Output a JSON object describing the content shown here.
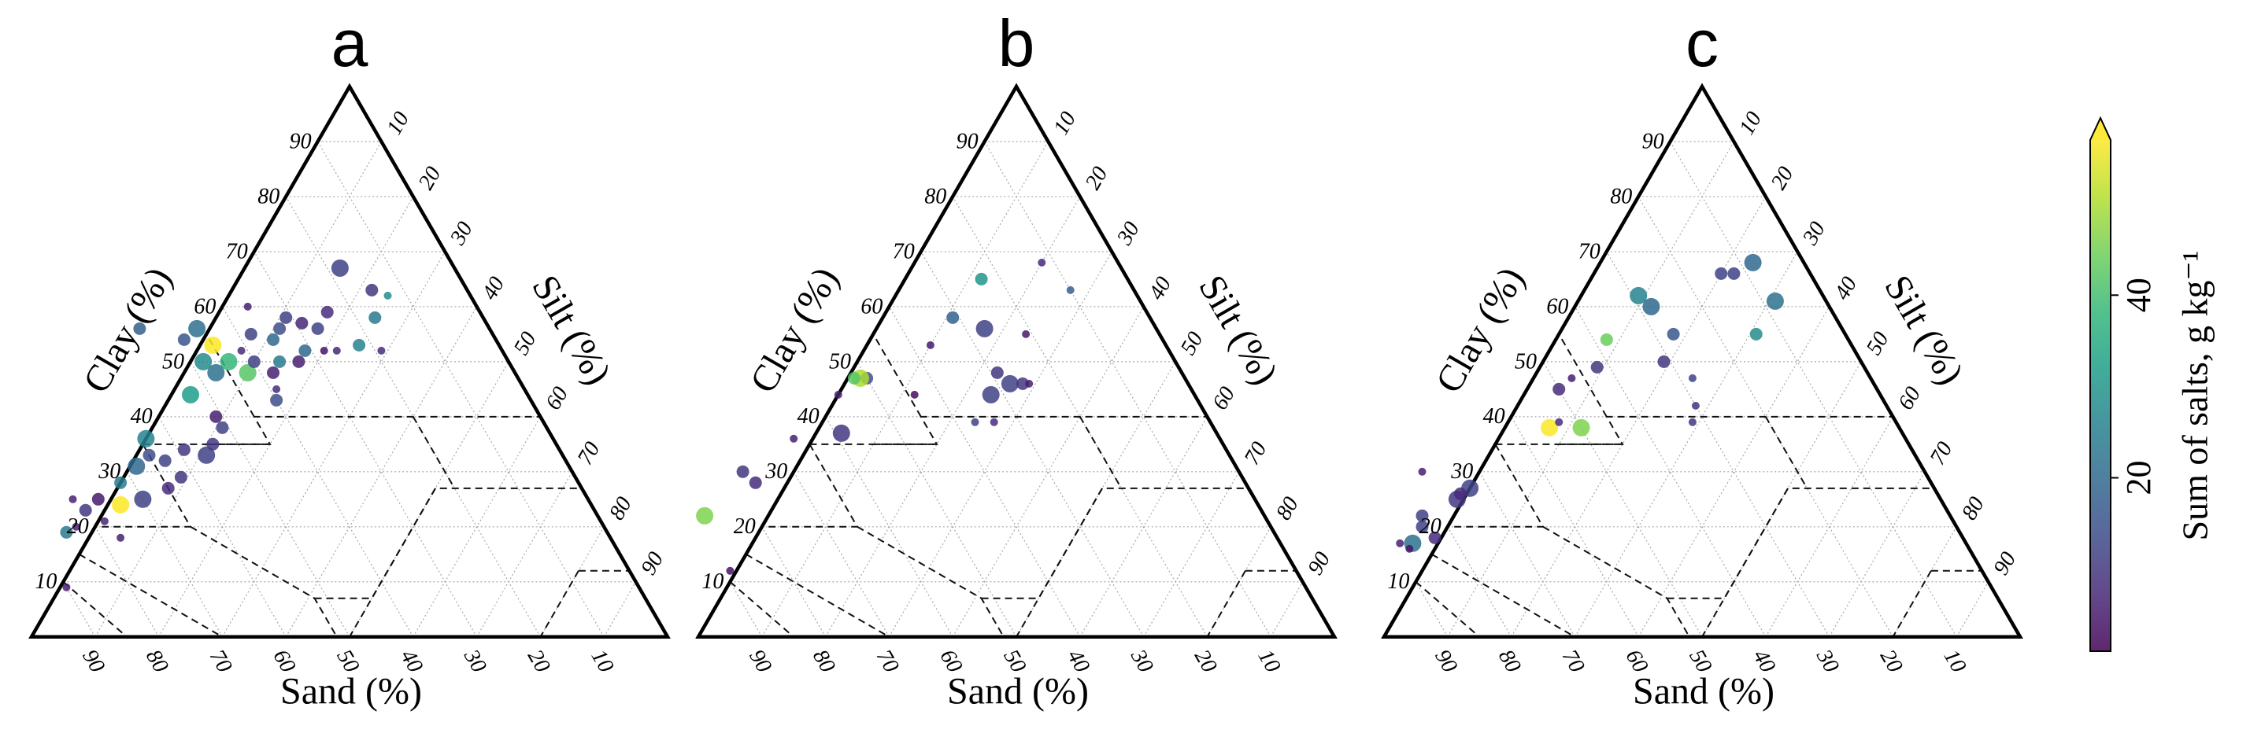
{
  "chart_data": {
    "type": "scatter",
    "subtype": "ternary",
    "axes": {
      "left_label": "Clay (%)",
      "right_label": "Silt (%)",
      "bottom_label": "Sand (%)",
      "clay_ticks": [
        "10",
        "20",
        "30",
        "40",
        "50",
        "60",
        "70",
        "80",
        "90"
      ],
      "silt_ticks": [
        "10",
        "20",
        "30",
        "40",
        "50",
        "60",
        "70",
        "80",
        "90"
      ],
      "sand_ticks": [
        "90",
        "80",
        "70",
        "60",
        "50",
        "40",
        "30",
        "20",
        "10"
      ]
    },
    "colorbar": {
      "label": "Sum of salts, g kg⁻¹",
      "range": [
        1,
        57
      ],
      "ticks": [
        "20",
        "40"
      ],
      "tick_values": [
        20,
        40
      ],
      "extend": "max",
      "colormap": "viridis"
    },
    "panels": [
      {
        "label": "a",
        "points": [
          {
            "sand": 18,
            "clay": 67,
            "salts": 12,
            "size": 3
          },
          {
            "sand": 15,
            "clay": 63,
            "salts": 10,
            "size": 2
          },
          {
            "sand": 13,
            "clay": 62,
            "salts": 28,
            "size": 1
          },
          {
            "sand": 17,
            "clay": 58,
            "salts": 24,
            "size": 2
          },
          {
            "sand": 24,
            "clay": 59,
            "salts": 8,
            "size": 2
          },
          {
            "sand": 27,
            "clay": 56,
            "salts": 12,
            "size": 2
          },
          {
            "sand": 29,
            "clay": 57,
            "salts": 7,
            "size": 2
          },
          {
            "sand": 31,
            "clay": 58,
            "salts": 12,
            "size": 2
          },
          {
            "sand": 33,
            "clay": 56,
            "salts": 14,
            "size": 2
          },
          {
            "sand": 35,
            "clay": 54,
            "salts": 20,
            "size": 2
          },
          {
            "sand": 36,
            "clay": 60,
            "salts": 6,
            "size": 1
          },
          {
            "sand": 38,
            "clay": 55,
            "salts": 12,
            "size": 2
          },
          {
            "sand": 41,
            "clay": 52,
            "salts": 8,
            "size": 1
          },
          {
            "sand": 46,
            "clay": 56,
            "salts": 22,
            "size": 3
          },
          {
            "sand": 45,
            "clay": 53,
            "salts": 57,
            "size": 3
          },
          {
            "sand": 44,
            "clay": 50,
            "salts": 38,
            "size": 3
          },
          {
            "sand": 42,
            "clay": 48,
            "salts": 42,
            "size": 3
          },
          {
            "sand": 40,
            "clay": 50,
            "salts": 12,
            "size": 2
          },
          {
            "sand": 38,
            "clay": 48,
            "salts": 6,
            "size": 2
          },
          {
            "sand": 36,
            "clay": 50,
            "salts": 24,
            "size": 2
          },
          {
            "sand": 33,
            "clay": 50,
            "salts": 6,
            "size": 2
          },
          {
            "sand": 31,
            "clay": 52,
            "salts": 20,
            "size": 2
          },
          {
            "sand": 28,
            "clay": 52,
            "salts": 4,
            "size": 1
          },
          {
            "sand": 26,
            "clay": 52,
            "salts": 7,
            "size": 1
          },
          {
            "sand": 22,
            "clay": 53,
            "salts": 26,
            "size": 2
          },
          {
            "sand": 19,
            "clay": 52,
            "salts": 8,
            "size": 1
          },
          {
            "sand": 48,
            "clay": 50,
            "salts": 28,
            "size": 3
          },
          {
            "sand": 47,
            "clay": 48,
            "salts": 22,
            "size": 3
          },
          {
            "sand": 49,
            "clay": 54,
            "salts": 16,
            "size": 2
          },
          {
            "sand": 55,
            "clay": 56,
            "salts": 18,
            "size": 2
          },
          {
            "sand": 53,
            "clay": 44,
            "salts": 32,
            "size": 3
          },
          {
            "sand": 51,
            "clay": 40,
            "salts": 6,
            "size": 2
          },
          {
            "sand": 51,
            "clay": 38,
            "salts": 12,
            "size": 2
          },
          {
            "sand": 40,
            "clay": 43,
            "salts": 14,
            "size": 2
          },
          {
            "sand": 39,
            "clay": 45,
            "salts": 8,
            "size": 1
          },
          {
            "sand": 64,
            "clay": 36,
            "salts": 26,
            "size": 3
          },
          {
            "sand": 65,
            "clay": 33,
            "salts": 14,
            "size": 2
          },
          {
            "sand": 63,
            "clay": 32,
            "salts": 12,
            "size": 2
          },
          {
            "sand": 59,
            "clay": 34,
            "salts": 10,
            "size": 2
          },
          {
            "sand": 56,
            "clay": 33,
            "salts": 12,
            "size": 3
          },
          {
            "sand": 54,
            "clay": 35,
            "salts": 10,
            "size": 2
          },
          {
            "sand": 68,
            "clay": 31,
            "salts": 20,
            "size": 3
          },
          {
            "sand": 62,
            "clay": 29,
            "salts": 10,
            "size": 2
          },
          {
            "sand": 65,
            "clay": 27,
            "salts": 8,
            "size": 2
          },
          {
            "sand": 72,
            "clay": 28,
            "salts": 24,
            "size": 2
          },
          {
            "sand": 70,
            "clay": 25,
            "salts": 12,
            "size": 3
          },
          {
            "sand": 74,
            "clay": 24,
            "salts": 57,
            "size": 3
          },
          {
            "sand": 77,
            "clay": 25,
            "salts": 5,
            "size": 2
          },
          {
            "sand": 80,
            "clay": 23,
            "salts": 10,
            "size": 2
          },
          {
            "sand": 81,
            "clay": 25,
            "salts": 6,
            "size": 1
          },
          {
            "sand": 78,
            "clay": 21,
            "salts": 7,
            "size": 1
          },
          {
            "sand": 83,
            "clay": 20,
            "salts": 6,
            "size": 1
          },
          {
            "sand": 85,
            "clay": 19,
            "salts": 24,
            "size": 2
          },
          {
            "sand": 77,
            "clay": 18,
            "salts": 6,
            "size": 1
          },
          {
            "sand": 90,
            "clay": 9,
            "salts": 6,
            "size": 1
          }
        ]
      },
      {
        "label": "b",
        "points": [
          {
            "sand": 12,
            "clay": 68,
            "salts": 8,
            "size": 1
          },
          {
            "sand": 10,
            "clay": 63,
            "salts": 18,
            "size": 1
          },
          {
            "sand": 23,
            "clay": 65,
            "salts": 30,
            "size": 2
          },
          {
            "sand": 31,
            "clay": 58,
            "salts": 18,
            "size": 2
          },
          {
            "sand": 27,
            "clay": 56,
            "salts": 12,
            "size": 3
          },
          {
            "sand": 21,
            "clay": 55,
            "salts": 5,
            "size": 1
          },
          {
            "sand": 37,
            "clay": 53,
            "salts": 5,
            "size": 1
          },
          {
            "sand": 29,
            "clay": 48,
            "salts": 10,
            "size": 2
          },
          {
            "sand": 28,
            "clay": 46,
            "salts": 12,
            "size": 3
          },
          {
            "sand": 26,
            "clay": 46,
            "salts": 10,
            "size": 2
          },
          {
            "sand": 25,
            "clay": 46,
            "salts": 6,
            "size": 1
          },
          {
            "sand": 32,
            "clay": 44,
            "salts": 12,
            "size": 3
          },
          {
            "sand": 37,
            "clay": 39,
            "salts": 12,
            "size": 1
          },
          {
            "sand": 34,
            "clay": 39,
            "salts": 8,
            "size": 1
          },
          {
            "sand": 44,
            "clay": 44,
            "salts": 3,
            "size": 1
          },
          {
            "sand": 50,
            "clay": 47,
            "salts": 14,
            "size": 2
          },
          {
            "sand": 51,
            "clay": 47,
            "salts": 50,
            "size": 3
          },
          {
            "sand": 52,
            "clay": 47,
            "salts": 42,
            "size": 2
          },
          {
            "sand": 56,
            "clay": 44,
            "salts": 6,
            "size": 1
          },
          {
            "sand": 59,
            "clay": 37,
            "salts": 10,
            "size": 3
          },
          {
            "sand": 67,
            "clay": 36,
            "salts": 6,
            "size": 1
          },
          {
            "sand": 78,
            "clay": 30,
            "salts": 10,
            "size": 2
          },
          {
            "sand": 77,
            "clay": 28,
            "salts": 8,
            "size": 2
          },
          {
            "sand": 88,
            "clay": 22,
            "salts": 46,
            "size": 3
          },
          {
            "sand": 89,
            "clay": 12,
            "salts": 4,
            "size": 1
          }
        ]
      },
      {
        "label": "c",
        "points": [
          {
            "sand": 8,
            "clay": 68,
            "salts": 20,
            "size": 3
          },
          {
            "sand": 14,
            "clay": 66,
            "salts": 12,
            "size": 2
          },
          {
            "sand": 12,
            "clay": 66,
            "salts": 12,
            "size": 2
          },
          {
            "sand": 8,
            "clay": 61,
            "salts": 22,
            "size": 3
          },
          {
            "sand": 14,
            "clay": 55,
            "salts": 28,
            "size": 2
          },
          {
            "sand": 29,
            "clay": 62,
            "salts": 26,
            "size": 3
          },
          {
            "sand": 28,
            "clay": 60,
            "salts": 20,
            "size": 3
          },
          {
            "sand": 27,
            "clay": 55,
            "salts": 16,
            "size": 2
          },
          {
            "sand": 38,
            "clay": 54,
            "salts": 44,
            "size": 2
          },
          {
            "sand": 31,
            "clay": 50,
            "salts": 10,
            "size": 2
          },
          {
            "sand": 28,
            "clay": 47,
            "salts": 12,
            "size": 1
          },
          {
            "sand": 42,
            "clay": 49,
            "salts": 10,
            "size": 2
          },
          {
            "sand": 30,
            "clay": 42,
            "salts": 10,
            "size": 1
          },
          {
            "sand": 47,
            "clay": 47,
            "salts": 6,
            "size": 1
          },
          {
            "sand": 50,
            "clay": 45,
            "salts": 8,
            "size": 2
          },
          {
            "sand": 32,
            "clay": 39,
            "salts": 10,
            "size": 1
          },
          {
            "sand": 55,
            "clay": 38,
            "salts": 57,
            "size": 3
          },
          {
            "sand": 50,
            "clay": 38,
            "salts": 46,
            "size": 3
          },
          {
            "sand": 53,
            "clay": 39,
            "salts": 8,
            "size": 1
          },
          {
            "sand": 73,
            "clay": 27,
            "salts": 12,
            "size": 3
          },
          {
            "sand": 76,
            "clay": 25,
            "salts": 10,
            "size": 3
          },
          {
            "sand": 75,
            "clay": 26,
            "salts": 8,
            "size": 2
          },
          {
            "sand": 79,
            "clay": 30,
            "salts": 6,
            "size": 1
          },
          {
            "sand": 83,
            "clay": 22,
            "salts": 12,
            "size": 2
          },
          {
            "sand": 84,
            "clay": 20,
            "salts": 12,
            "size": 2
          },
          {
            "sand": 83,
            "clay": 18,
            "salts": 8,
            "size": 2
          },
          {
            "sand": 87,
            "clay": 17,
            "salts": 22,
            "size": 3
          },
          {
            "sand": 89,
            "clay": 17,
            "salts": 6,
            "size": 1
          },
          {
            "sand": 88,
            "clay": 16,
            "salts": 4,
            "size": 1
          }
        ]
      }
    ]
  }
}
